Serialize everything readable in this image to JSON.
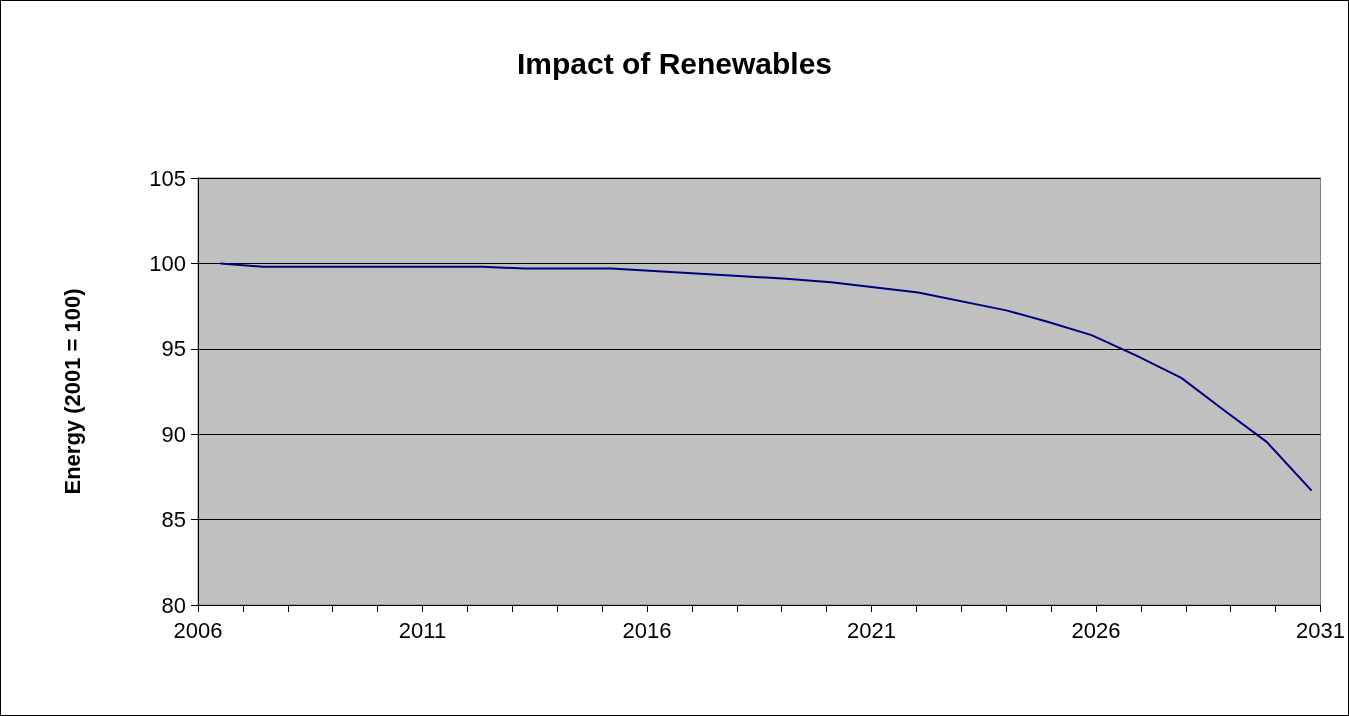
{
  "chart_data": {
    "type": "line",
    "title": "Impact of Renewables",
    "ylabel": "Energy (2001 = 100)",
    "x": [
      2006.5,
      2007.44,
      2012.33,
      2013.26,
      2015.2,
      2019.1,
      2020.1,
      2022.04,
      2024.0,
      2024.9,
      2025.9,
      2026.9,
      2027.9,
      2028.85,
      2029.8,
      2030.8
    ],
    "series": [
      {
        "color": "#000080",
        "values": [
          100.0,
          99.8,
          99.8,
          99.7,
          99.7,
          99.1,
          98.9,
          98.3,
          97.25,
          96.6,
          95.8,
          94.6,
          93.3,
          91.4,
          89.55,
          86.7
        ]
      }
    ],
    "xlim": [
      2006,
      2031
    ],
    "xticks": [
      2006,
      {
        "value": 2007,
        "label": null
      },
      {
        "value": 2008,
        "label": null
      },
      {
        "value": 2009,
        "label": null
      },
      {
        "value": 2010,
        "label": null
      },
      2011,
      {
        "value": 2012,
        "label": null
      },
      {
        "value": 2013,
        "label": null
      },
      {
        "value": 2014,
        "label": null
      },
      {
        "value": 2015,
        "label": null
      },
      2016,
      {
        "value": 2017,
        "label": null
      },
      {
        "value": 2018,
        "label": null
      },
      {
        "value": 2019,
        "label": null
      },
      {
        "value": 2020,
        "label": null
      },
      2021,
      {
        "value": 2022,
        "label": null
      },
      {
        "value": 2023,
        "label": null
      },
      {
        "value": 2024,
        "label": null
      },
      {
        "value": 2025,
        "label": null
      },
      2026,
      {
        "value": 2027,
        "label": null
      },
      {
        "value": 2028,
        "label": null
      },
      {
        "value": 2029,
        "label": null
      },
      {
        "value": 2030,
        "label": null
      },
      2031
    ],
    "ylim": [
      80,
      105
    ],
    "yticks": [
      80,
      85,
      90,
      95,
      100,
      105
    ],
    "grid": "y",
    "marker": "none",
    "line_style": "solid"
  }
}
